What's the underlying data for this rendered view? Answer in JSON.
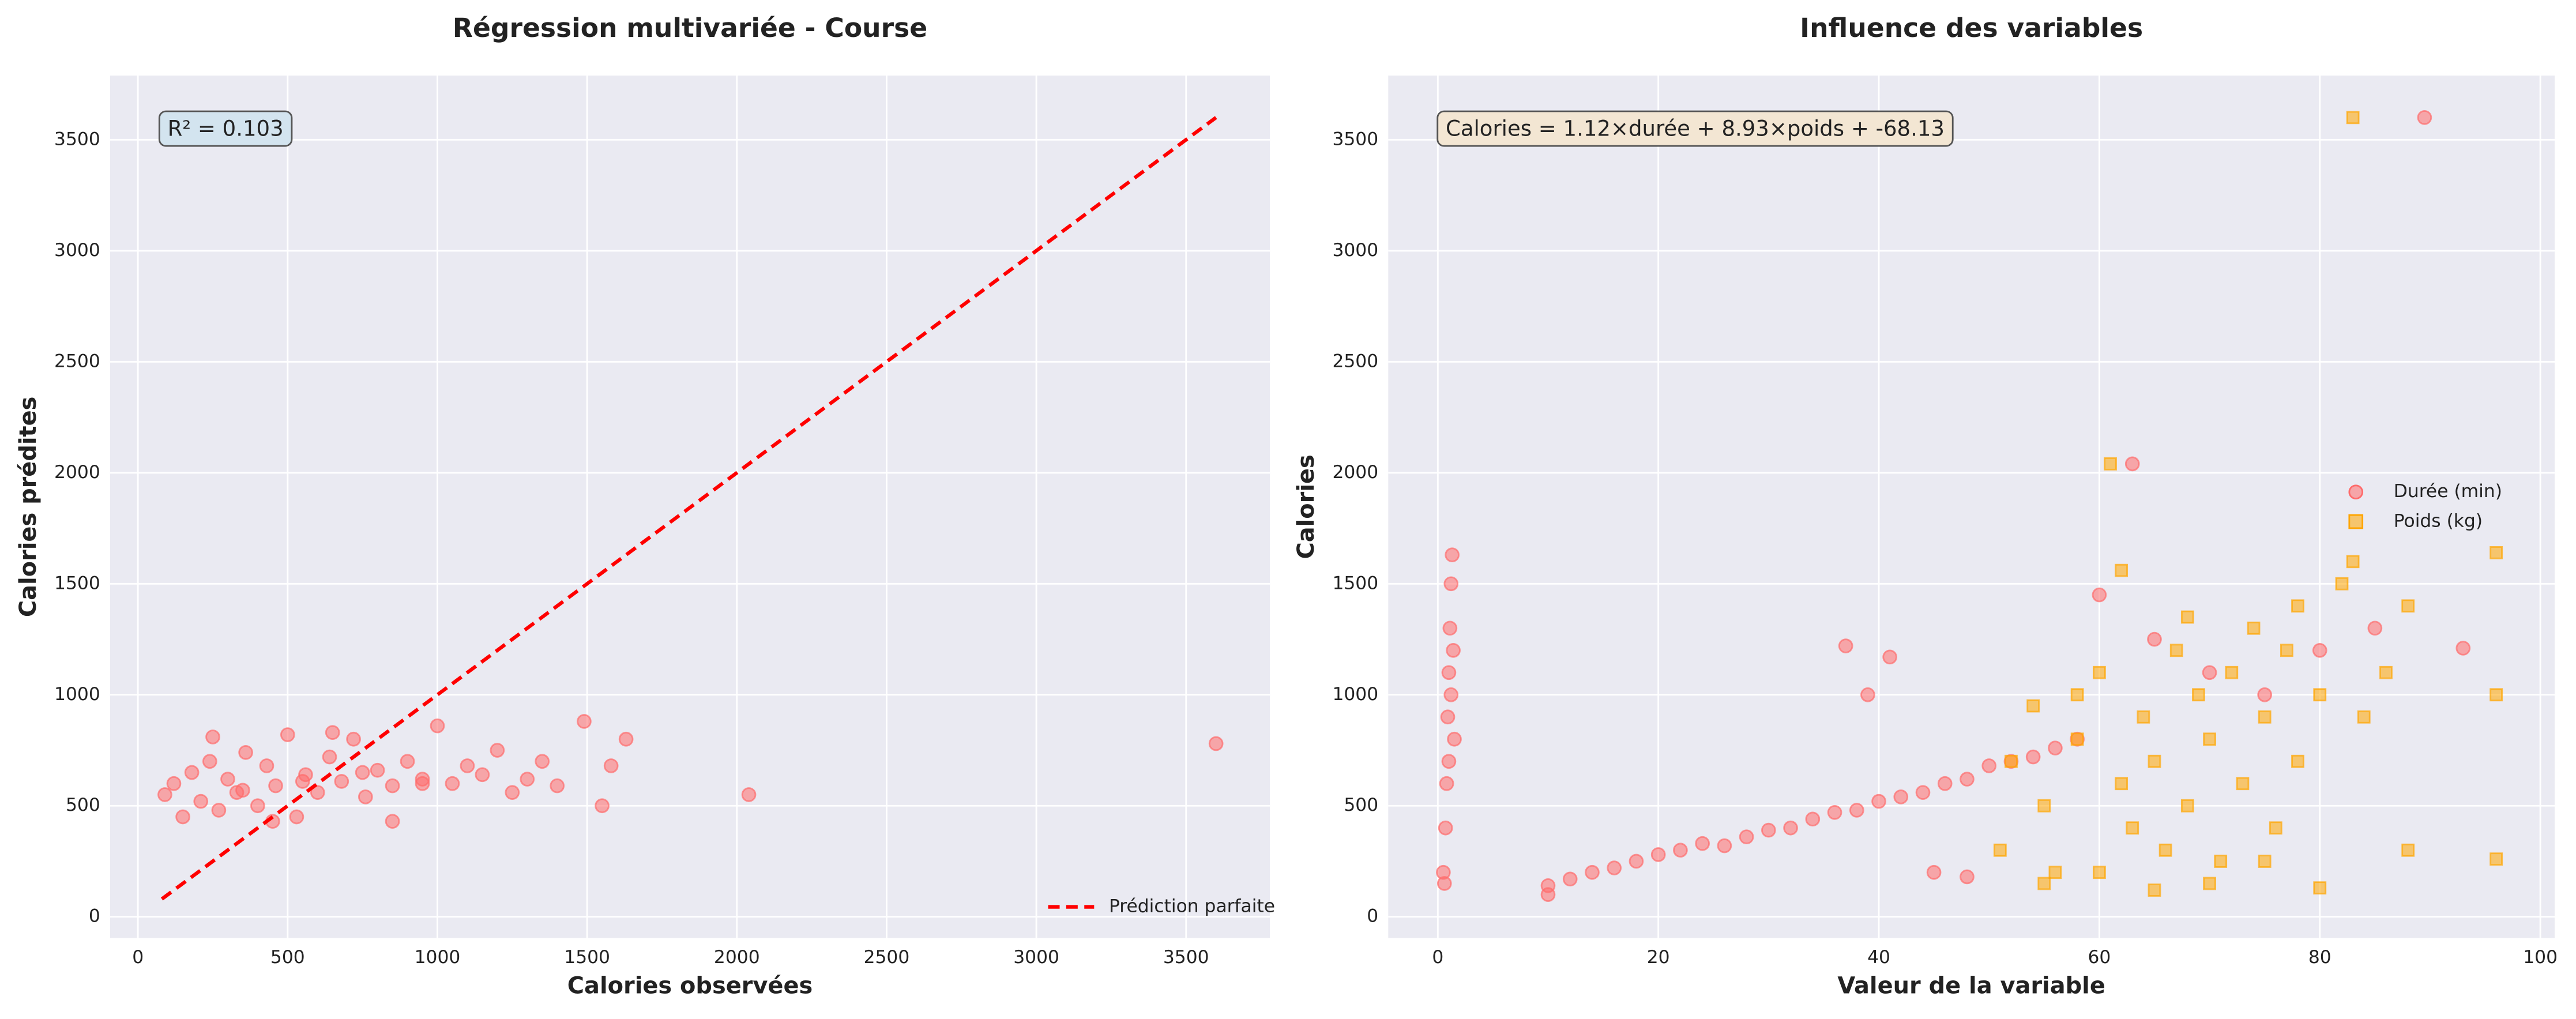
{
  "chart_data": [
    {
      "type": "scatter",
      "title": "Régression multivariée - Course",
      "xlabel": "Calories observées",
      "ylabel": "Calories prédites",
      "annotation": "R² = 0.103",
      "annotation_color": "#d3e4ef",
      "xlim": [
        -93,
        3780
      ],
      "ylim": [
        -96,
        3789
      ],
      "xticks": [
        0,
        500,
        1000,
        1500,
        2000,
        2500,
        3000,
        3500
      ],
      "yticks": [
        0,
        500,
        1000,
        1500,
        2000,
        2500,
        3000,
        3500
      ],
      "grid": true,
      "legend": "lower right",
      "series": [
        {
          "color": "#ff6b6b",
          "marker": "circle",
          "x": [
            90,
            120,
            150,
            180,
            210,
            240,
            270,
            300,
            330,
            360,
            400,
            430,
            460,
            500,
            530,
            560,
            600,
            640,
            680,
            720,
            760,
            800,
            850,
            900,
            950,
            1000,
            1050,
            1100,
            1150,
            1200,
            1250,
            1300,
            1350,
            1400,
            1490,
            1550,
            1580,
            1630,
            2040,
            3600,
            250,
            450,
            650,
            850,
            350,
            550,
            750,
            950
          ],
          "values": [
            550,
            600,
            450,
            650,
            520,
            700,
            480,
            620,
            560,
            740,
            500,
            680,
            590,
            820,
            450,
            640,
            560,
            720,
            610,
            800,
            540,
            660,
            590,
            700,
            620,
            860,
            600,
            680,
            640,
            750,
            560,
            620,
            700,
            590,
            880,
            500,
            680,
            800,
            550,
            780,
            810,
            430,
            830,
            430,
            570,
            610,
            650,
            600
          ]
        },
        {
          "name": "Prédiction parfaite",
          "type": "line",
          "style": "dashed",
          "color": "#ff0000",
          "x": [
            80,
            3600
          ],
          "values": [
            80,
            3600
          ]
        }
      ]
    },
    {
      "type": "scatter",
      "title": "Influence des variables",
      "xlabel": "Valeur de la variable",
      "ylabel": "Calories",
      "annotation": "Calories = 1.12×durée + 8.93×poids + -68.13",
      "annotation_color": "#f3e6d3",
      "xlim": [
        -4.5,
        101.3
      ],
      "ylim": [
        -96,
        3789
      ],
      "xticks": [
        0,
        20,
        40,
        60,
        80,
        100
      ],
      "yticks": [
        0,
        500,
        1000,
        1500,
        2000,
        2500,
        3000,
        3500
      ],
      "grid": true,
      "legend": "center right",
      "series": [
        {
          "name": "Durée (min)",
          "color": "#ff6b6b",
          "marker": "circle",
          "x": [
            0.5,
            0.7,
            0.8,
            0.9,
            1.0,
            1.1,
            1.2,
            1.3,
            1.4,
            1.5,
            0.6,
            1.0,
            1.2,
            10,
            10,
            12,
            14,
            16,
            18,
            20,
            22,
            24,
            26,
            28,
            30,
            32,
            34,
            36,
            38,
            40,
            42,
            44,
            46,
            48,
            50,
            52,
            54,
            56,
            58,
            60,
            63,
            65,
            70,
            75,
            80,
            85,
            89.5,
            93,
            37,
            41,
            39,
            45,
            48
          ],
          "values": [
            200,
            400,
            600,
            900,
            1100,
            1300,
            1500,
            1630,
            1200,
            800,
            150,
            700,
            1000,
            100,
            140,
            170,
            200,
            220,
            250,
            280,
            300,
            330,
            320,
            360,
            390,
            400,
            440,
            470,
            480,
            520,
            540,
            560,
            600,
            620,
            680,
            700,
            720,
            760,
            800,
            1450,
            2040,
            1250,
            1100,
            1000,
            1200,
            1300,
            3600,
            1210,
            1220,
            1170,
            1000,
            200,
            180
          ]
        },
        {
          "name": "Poids (kg)",
          "color": "#ffa500",
          "marker": "square",
          "x": [
            51,
            52,
            54,
            55,
            56,
            58,
            60,
            61,
            62,
            62,
            63,
            64,
            65,
            66,
            67,
            68,
            69,
            70,
            71,
            72,
            73,
            74,
            75,
            76,
            77,
            78,
            80,
            82,
            83,
            83,
            84,
            86,
            88,
            88,
            96,
            96,
            96,
            55,
            60,
            65,
            70,
            75,
            80,
            58,
            68,
            78
          ],
          "values": [
            300,
            700,
            950,
            500,
            200,
            800,
            1100,
            2040,
            1560,
            600,
            400,
            900,
            700,
            300,
            1200,
            500,
            1000,
            800,
            250,
            1100,
            600,
            1300,
            900,
            400,
            1200,
            700,
            1000,
            1500,
            3600,
            1600,
            900,
            1100,
            1400,
            300,
            1640,
            1000,
            260,
            150,
            200,
            120,
            150,
            250,
            130,
            1000,
            1350,
            1400
          ]
        }
      ]
    }
  ]
}
